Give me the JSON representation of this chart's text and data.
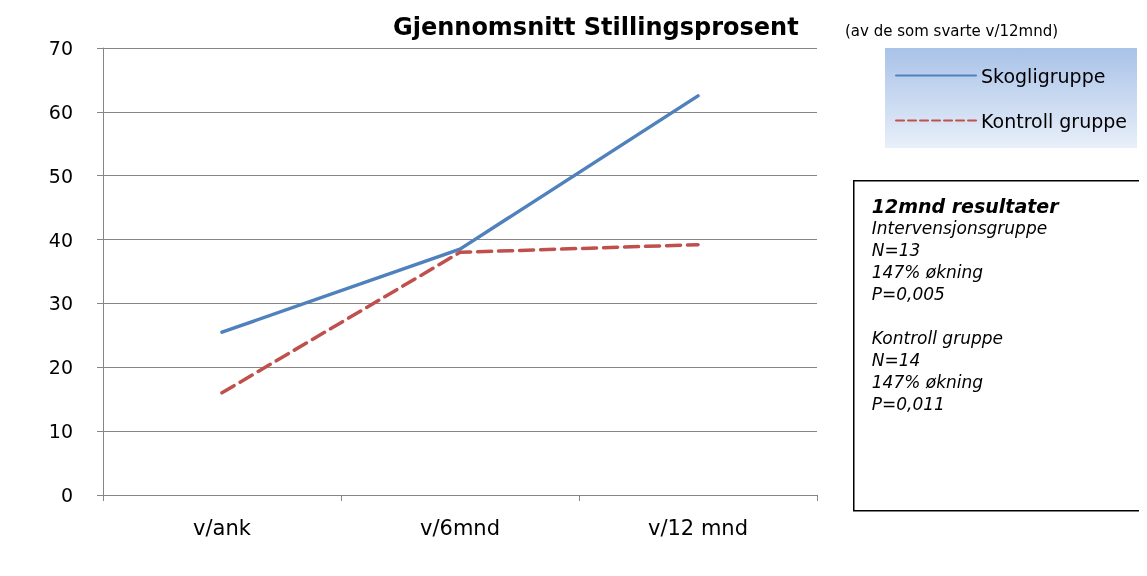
{
  "chart_data": {
    "type": "line",
    "title": "Gjennomsnitt Stillingsprosent",
    "subtitle": "(av de som svarte v/12mnd)",
    "categories": [
      "v/ank",
      "v/6mnd",
      "v/12 mnd"
    ],
    "series": [
      {
        "name": "Skogligruppe",
        "color": "#4f81bd",
        "line_style": "solid",
        "values": [
          25.5,
          38.5,
          62.5
        ]
      },
      {
        "name": "Kontroll gruppe",
        "color": "#c0504d",
        "line_style": "dashed",
        "values": [
          16,
          38,
          39.2
        ]
      }
    ],
    "ylim": [
      0,
      70
    ],
    "yticks": [
      0,
      10,
      20,
      30,
      40,
      50,
      60,
      70
    ],
    "grid": "y",
    "legend": "right",
    "marker": "none",
    "annotations": [
      "12mnd resultater",
      "Intervensjonsgruppe\nN=13\n147% økning\nP=0,005",
      "Kontroll gruppe\nN=14\n147% økning\nP=0,011"
    ]
  }
}
